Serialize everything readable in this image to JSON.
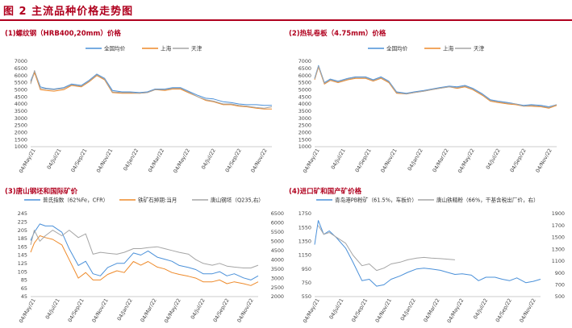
{
  "figure_title": "图 2 主流品种价格走势图",
  "x_ticks": [
    "04/May/21",
    "04/Jul/21",
    "04/Sep/21",
    "04/Nov/21",
    "04/Jan/22",
    "04/Mar/22",
    "04/May/22",
    "04/Jul/22",
    "04/Sep/22",
    "04/Nov/22"
  ],
  "colors": {
    "blue": "#4a90d9",
    "orange": "#ee8a2a",
    "gray": "#a5a5a5",
    "title": "#b0001e"
  },
  "chart_data": [
    {
      "type": "line",
      "title": "(1)螺纹钢（HRB400,20mm）价格",
      "yticks": [
        "7000",
        "6500",
        "6000",
        "5500",
        "5000",
        "4500",
        "4000",
        "3500",
        "3000",
        "2500",
        "2000",
        "1500",
        "1000"
      ],
      "ylim": [
        1000,
        7000
      ],
      "x": [
        0,
        2,
        5,
        8,
        12,
        17,
        21,
        26,
        30,
        34,
        38,
        42,
        47,
        51,
        56,
        60,
        64,
        69,
        73,
        77,
        81,
        86,
        90,
        94,
        99,
        103,
        107,
        111,
        116,
        120,
        124
      ],
      "series": [
        {
          "name": "全国均价",
          "values": [
            5600,
            6300,
            5200,
            5100,
            5050,
            5150,
            5400,
            5300,
            5650,
            6100,
            5800,
            4950,
            4850,
            4850,
            4800,
            4850,
            5050,
            5050,
            5150,
            5150,
            4900,
            4600,
            4400,
            4350,
            4150,
            4100,
            4000,
            3950,
            3950,
            3900,
            3900
          ]
        },
        {
          "name": "上海",
          "values": [
            5500,
            6200,
            5000,
            4950,
            4900,
            5000,
            5300,
            5200,
            5550,
            6000,
            5700,
            4800,
            4750,
            4750,
            4750,
            4800,
            5000,
            4950,
            5050,
            5050,
            4800,
            4500,
            4250,
            4150,
            3950,
            3950,
            3850,
            3800,
            3700,
            3650,
            3650
          ]
        },
        {
          "name": "天津",
          "values": [
            5400,
            6350,
            5100,
            5050,
            5000,
            5100,
            5350,
            5250,
            5600,
            6050,
            5750,
            4850,
            4800,
            4800,
            4750,
            4800,
            5000,
            5000,
            5100,
            5100,
            4850,
            4500,
            4300,
            4200,
            4000,
            4000,
            3900,
            3850,
            3750,
            3700,
            3800
          ]
        }
      ],
      "color_keys": [
        "blue",
        "orange",
        "gray"
      ]
    },
    {
      "type": "line",
      "title": "(2)热轧卷板（4.75mm）价格",
      "yticks": [
        "7000",
        "6500",
        "6000",
        "5500",
        "5000",
        "4500",
        "4000",
        "3500",
        "3000",
        "2500",
        "2000",
        "1500",
        "1000"
      ],
      "ylim": [
        1000,
        7000
      ],
      "x": [
        0,
        2,
        5,
        8,
        12,
        17,
        21,
        26,
        30,
        34,
        38,
        42,
        47,
        51,
        56,
        60,
        64,
        69,
        73,
        77,
        81,
        86,
        90,
        94,
        99,
        103,
        107,
        111,
        116,
        120,
        124
      ],
      "series": [
        {
          "name": "全国均价",
          "values": [
            5800,
            6700,
            5500,
            5750,
            5600,
            5800,
            5900,
            5900,
            5700,
            5900,
            5600,
            4850,
            4750,
            4850,
            4950,
            5050,
            5150,
            5250,
            5200,
            5300,
            5100,
            4700,
            4300,
            4200,
            4100,
            4000,
            3900,
            3950,
            3900,
            3800,
            3950
          ]
        },
        {
          "name": "上海",
          "values": [
            5700,
            6600,
            5400,
            5650,
            5500,
            5700,
            5800,
            5800,
            5600,
            5800,
            5500,
            4750,
            4700,
            4800,
            4900,
            5000,
            5100,
            5200,
            5100,
            5200,
            5000,
            4600,
            4200,
            4100,
            4000,
            3950,
            3850,
            3850,
            3800,
            3700,
            3900
          ]
        },
        {
          "name": "天津",
          "values": [
            5750,
            6650,
            5450,
            5700,
            5550,
            5750,
            5850,
            5850,
            5650,
            5850,
            5550,
            4800,
            4700,
            4800,
            4900,
            5000,
            5100,
            5200,
            5150,
            5250,
            5050,
            4650,
            4250,
            4150,
            4050,
            4000,
            3850,
            3900,
            3850,
            3750,
            3950
          ]
        }
      ],
      "color_keys": [
        "blue",
        "orange",
        "gray"
      ]
    },
    {
      "type": "line",
      "title": "(3)唐山钢坯和国际矿价",
      "yticks": [
        "245",
        "225",
        "205",
        "185",
        "165",
        "145",
        "125",
        "105",
        "85",
        "65",
        "45"
      ],
      "ylim": [
        45,
        245
      ],
      "y2ticks": [
        "6500",
        "6000",
        "5500",
        "5000",
        "4500",
        "4000",
        "3500",
        "3000",
        "2500",
        "2000"
      ],
      "y2lim": [
        2000,
        6500
      ],
      "x": [
        0,
        2,
        5,
        8,
        12,
        17,
        21,
        26,
        30,
        34,
        38,
        42,
        47,
        51,
        56,
        60,
        64,
        69,
        73,
        77,
        81,
        86,
        90,
        94,
        99,
        103,
        107,
        111,
        116,
        120,
        124
      ],
      "series": [
        {
          "name": "普氏指数（62%Fe，CFR）",
          "axis": "left",
          "values": [
            180,
            200,
            220,
            215,
            215,
            200,
            160,
            120,
            130,
            100,
            95,
            115,
            125,
            125,
            150,
            145,
            155,
            140,
            135,
            130,
            120,
            115,
            110,
            100,
            100,
            105,
            95,
            100,
            90,
            85,
            95
          ]
        },
        {
          "name": "铁矿石掉期:当月",
          "axis": "right",
          "values": [
            4400,
            4900,
            5300,
            5200,
            5100,
            4800,
            4000,
            3000,
            3300,
            2900,
            2900,
            3200,
            3400,
            3300,
            3900,
            3700,
            3900,
            3600,
            3500,
            3300,
            3200,
            3100,
            3000,
            2800,
            2800,
            2900,
            2700,
            2800,
            2700,
            2600,
            2800
          ]
        },
        {
          "name": "唐山钢坯（Q235,右）",
          "axis": "right",
          "values": [
            4800,
            5600,
            5000,
            5300,
            5600,
            5300,
            5600,
            5200,
            5400,
            4300,
            4400,
            4350,
            4300,
            4400,
            4600,
            4600,
            4650,
            4700,
            4600,
            4500,
            4400,
            4300,
            4000,
            3800,
            3700,
            3800,
            3650,
            3600,
            3550,
            3550,
            3700
          ]
        }
      ],
      "color_keys": [
        "blue",
        "orange",
        "gray"
      ]
    },
    {
      "type": "line",
      "title": "(4)进口矿和国产矿价格",
      "yticks": [
        "1750",
        "1550",
        "1350",
        "1150",
        "950",
        "750",
        "550"
      ],
      "ylim": [
        550,
        1750
      ],
      "y2ticks": [
        "1900",
        "1700",
        "1500",
        "1300",
        "1100",
        "900",
        "700",
        "500"
      ],
      "y2lim": [
        500,
        1900
      ],
      "x": [
        0,
        2,
        5,
        8,
        12,
        17,
        21,
        26,
        30,
        34,
        38,
        42,
        47,
        51,
        56,
        60,
        64,
        69,
        73,
        77,
        81,
        86,
        90,
        94,
        99,
        103,
        107,
        111,
        116,
        120,
        124
      ],
      "series": [
        {
          "name": "青岛港PB粉矿（61.5%，车板价）",
          "axis": "left",
          "values": [
            1300,
            1650,
            1450,
            1500,
            1400,
            1250,
            1050,
            780,
            800,
            700,
            720,
            800,
            850,
            900,
            950,
            960,
            950,
            930,
            900,
            870,
            880,
            860,
            780,
            830,
            830,
            800,
            780,
            820,
            750,
            770,
            800
          ]
        },
        {
          "name": "唐山铁精粉（66%，干基含税出厂价，右）",
          "axis": "right",
          "values": [
            null,
            1700,
            1550,
            1580,
            1500,
            1400,
            1200,
            1020,
            1050,
            940,
            980,
            1050,
            1080,
            1120,
            1150,
            1160,
            1150,
            1140,
            1130,
            1120,
            null,
            null,
            null,
            null,
            null,
            null,
            null,
            null,
            null,
            null,
            null
          ]
        }
      ],
      "color_keys": [
        "blue",
        "gray"
      ]
    }
  ]
}
